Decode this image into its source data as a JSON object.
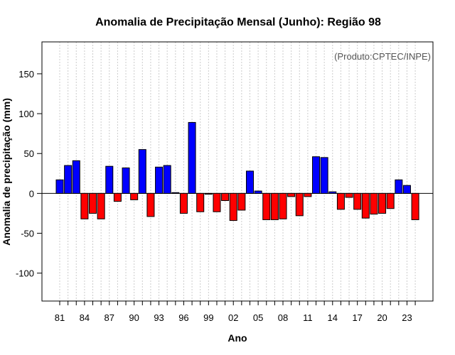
{
  "chart_data": {
    "type": "bar",
    "title": "Anomalia de Precipitação Mensal (Junho): Região 98",
    "xlabel": "Ano",
    "ylabel": "Anomalia de precipitação (mm)",
    "credit": "(Produto:CPTEC/INPE)",
    "ylim": [
      -135,
      190
    ],
    "yticks": [
      -100,
      -50,
      0,
      50,
      100,
      150
    ],
    "grid": true,
    "legend": "none",
    "positive_color": "#0000ff",
    "negative_color": "#ff0000",
    "categories": [
      "81",
      "82",
      "83",
      "84",
      "85",
      "86",
      "87",
      "88",
      "89",
      "90",
      "91",
      "92",
      "93",
      "94",
      "95",
      "96",
      "97",
      "98",
      "99",
      "00",
      "01",
      "02",
      "03",
      "04",
      "05",
      "06",
      "07",
      "08",
      "09",
      "10",
      "11",
      "12",
      "13",
      "14",
      "15",
      "16",
      "17",
      "18",
      "19",
      "20",
      "21",
      "22",
      "23",
      "24"
    ],
    "xtick_labels": [
      "81",
      "84",
      "87",
      "90",
      "93",
      "96",
      "99",
      "02",
      "05",
      "08",
      "11",
      "14",
      "17",
      "20",
      "23"
    ],
    "values": [
      17,
      35,
      41,
      -32,
      -25,
      -32,
      34,
      -10,
      32,
      -8,
      55,
      -29,
      33,
      35,
      1,
      -25,
      89,
      -23,
      -1,
      -23,
      -9,
      -34,
      -21,
      28,
      3,
      -33,
      -33,
      -32,
      -4,
      -28,
      -4,
      46,
      45,
      2,
      -20,
      -5,
      -20,
      -31,
      -26,
      -25,
      -19,
      17,
      10,
      -33
    ]
  }
}
